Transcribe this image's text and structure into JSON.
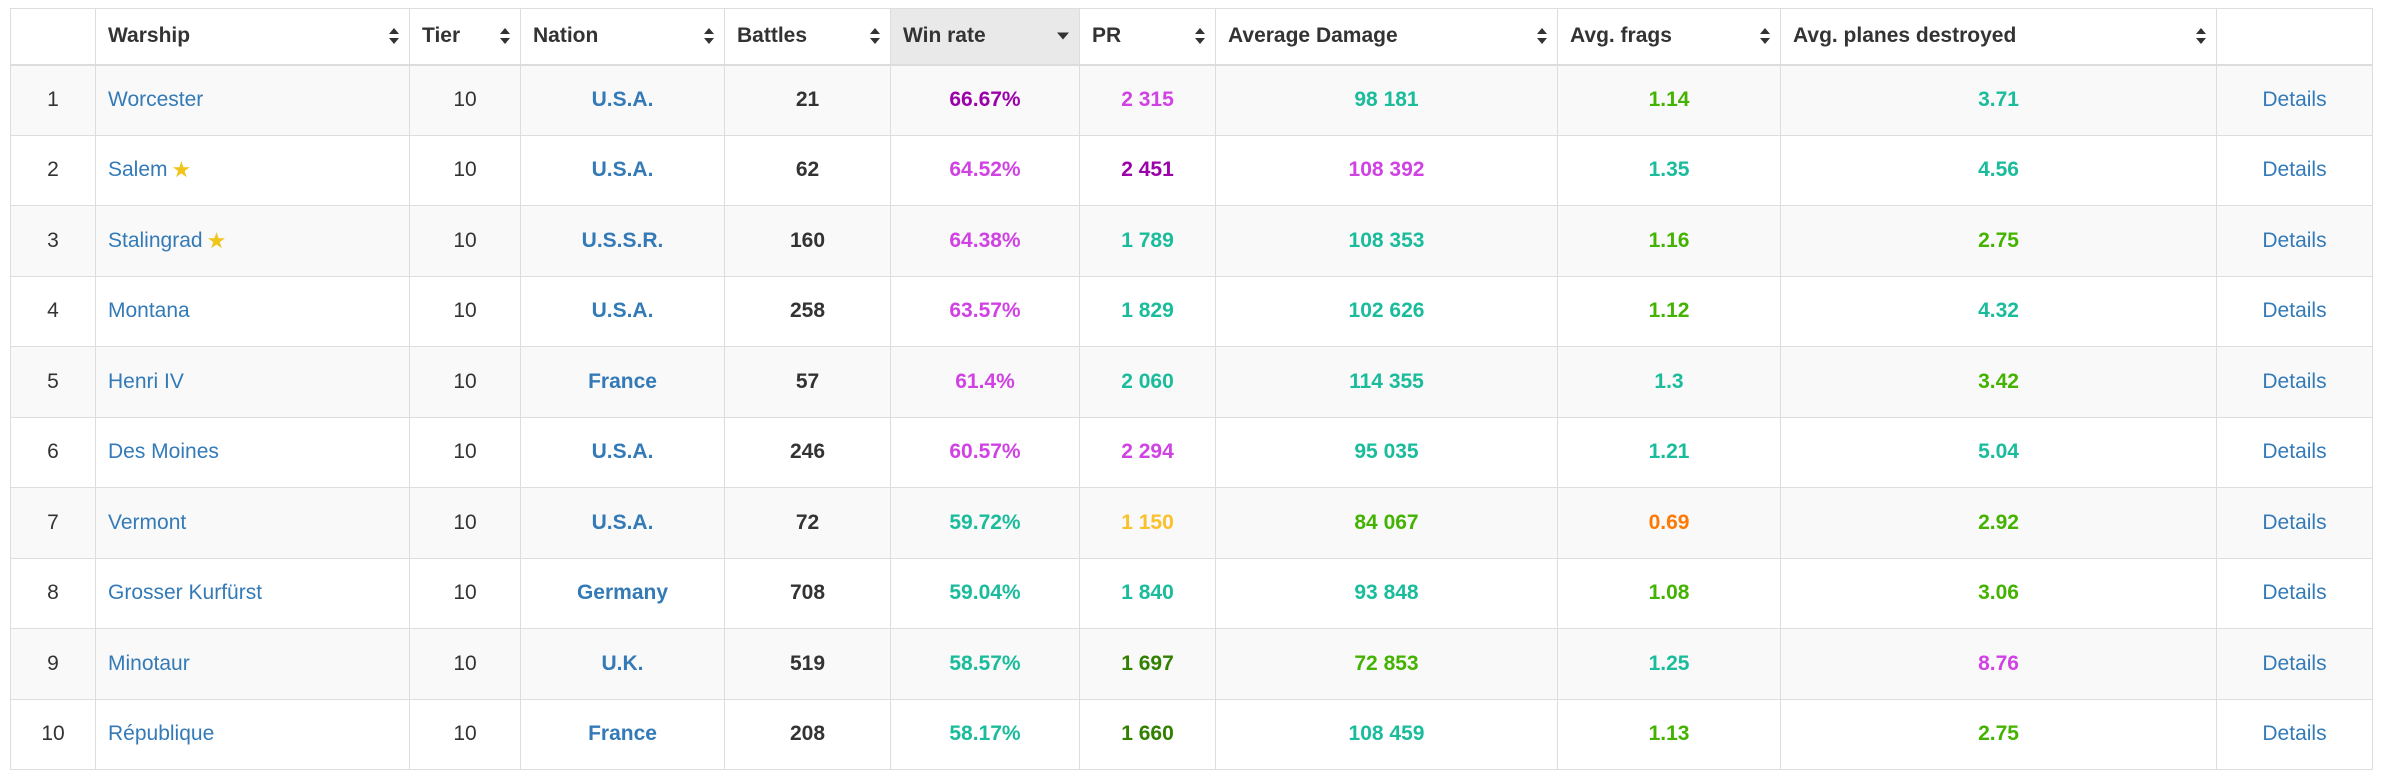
{
  "colors": {
    "link": "#337ab7",
    "purple": "#9b00aa",
    "magenta": "#d042e4",
    "teal": "#1abc9c",
    "green": "#44b300",
    "dark_green": "#318000",
    "yellow": "#fbc02d",
    "orange": "#fe7903",
    "star": "#f0c419"
  },
  "headers": [
    {
      "label": "",
      "sortable": false
    },
    {
      "label": "Warship",
      "sortable": true
    },
    {
      "label": "Tier",
      "sortable": true
    },
    {
      "label": "Nation",
      "sortable": true
    },
    {
      "label": "Battles",
      "sortable": true
    },
    {
      "label": "Win rate",
      "sortable": true,
      "sorted": "desc"
    },
    {
      "label": "PR",
      "sortable": true
    },
    {
      "label": "Average Damage",
      "sortable": true
    },
    {
      "label": "Avg. frags",
      "sortable": true
    },
    {
      "label": "Avg. planes destroyed",
      "sortable": true
    },
    {
      "label": "",
      "sortable": false
    }
  ],
  "rows": [
    {
      "num": "1",
      "ship": "Worcester",
      "star": false,
      "tier": "10",
      "nation": "U.S.A.",
      "battles": "21",
      "winrate": "66.67%",
      "winrate_color": "#9b00aa",
      "pr": "2 315",
      "pr_color": "#d042e4",
      "damage": "98 181",
      "damage_color": "#1abc9c",
      "frags": "1.14",
      "frags_color": "#44b300",
      "planes": "3.71",
      "planes_color": "#1abc9c",
      "details": "Details"
    },
    {
      "num": "2",
      "ship": "Salem",
      "star": true,
      "tier": "10",
      "nation": "U.S.A.",
      "battles": "62",
      "winrate": "64.52%",
      "winrate_color": "#d042e4",
      "pr": "2 451",
      "pr_color": "#9b00aa",
      "damage": "108 392",
      "damage_color": "#d042e4",
      "frags": "1.35",
      "frags_color": "#1abc9c",
      "planes": "4.56",
      "planes_color": "#1abc9c",
      "details": "Details"
    },
    {
      "num": "3",
      "ship": "Stalingrad",
      "star": true,
      "tier": "10",
      "nation": "U.S.S.R.",
      "battles": "160",
      "winrate": "64.38%",
      "winrate_color": "#d042e4",
      "pr": "1 789",
      "pr_color": "#1abc9c",
      "damage": "108 353",
      "damage_color": "#1abc9c",
      "frags": "1.16",
      "frags_color": "#44b300",
      "planes": "2.75",
      "planes_color": "#44b300",
      "details": "Details"
    },
    {
      "num": "4",
      "ship": "Montana",
      "star": false,
      "tier": "10",
      "nation": "U.S.A.",
      "battles": "258",
      "winrate": "63.57%",
      "winrate_color": "#d042e4",
      "pr": "1 829",
      "pr_color": "#1abc9c",
      "damage": "102 626",
      "damage_color": "#1abc9c",
      "frags": "1.12",
      "frags_color": "#44b300",
      "planes": "4.32",
      "planes_color": "#1abc9c",
      "details": "Details"
    },
    {
      "num": "5",
      "ship": "Henri IV",
      "star": false,
      "tier": "10",
      "nation": "France",
      "battles": "57",
      "winrate": "61.4%",
      "winrate_color": "#d042e4",
      "pr": "2 060",
      "pr_color": "#1abc9c",
      "damage": "114 355",
      "damage_color": "#1abc9c",
      "frags": "1.3",
      "frags_color": "#1abc9c",
      "planes": "3.42",
      "planes_color": "#44b300",
      "details": "Details"
    },
    {
      "num": "6",
      "ship": "Des Moines",
      "star": false,
      "tier": "10",
      "nation": "U.S.A.",
      "battles": "246",
      "winrate": "60.57%",
      "winrate_color": "#d042e4",
      "pr": "2 294",
      "pr_color": "#d042e4",
      "damage": "95 035",
      "damage_color": "#1abc9c",
      "frags": "1.21",
      "frags_color": "#1abc9c",
      "planes": "5.04",
      "planes_color": "#1abc9c",
      "details": "Details"
    },
    {
      "num": "7",
      "ship": "Vermont",
      "star": false,
      "tier": "10",
      "nation": "U.S.A.",
      "battles": "72",
      "winrate": "59.72%",
      "winrate_color": "#1abc9c",
      "pr": "1 150",
      "pr_color": "#fbc02d",
      "damage": "84 067",
      "damage_color": "#44b300",
      "frags": "0.69",
      "frags_color": "#fe7903",
      "planes": "2.92",
      "planes_color": "#44b300",
      "details": "Details"
    },
    {
      "num": "8",
      "ship": "Grosser Kurfürst",
      "star": false,
      "tier": "10",
      "nation": "Germany",
      "battles": "708",
      "winrate": "59.04%",
      "winrate_color": "#1abc9c",
      "pr": "1 840",
      "pr_color": "#1abc9c",
      "damage": "93 848",
      "damage_color": "#1abc9c",
      "frags": "1.08",
      "frags_color": "#44b300",
      "planes": "3.06",
      "planes_color": "#44b300",
      "details": "Details"
    },
    {
      "num": "9",
      "ship": "Minotaur",
      "star": false,
      "tier": "10",
      "nation": "U.K.",
      "battles": "519",
      "winrate": "58.57%",
      "winrate_color": "#1abc9c",
      "pr": "1 697",
      "pr_color": "#318000",
      "damage": "72 853",
      "damage_color": "#44b300",
      "frags": "1.25",
      "frags_color": "#1abc9c",
      "planes": "8.76",
      "planes_color": "#d042e4",
      "details": "Details"
    },
    {
      "num": "10",
      "ship": "République",
      "star": false,
      "tier": "10",
      "nation": "France",
      "battles": "208",
      "winrate": "58.17%",
      "winrate_color": "#1abc9c",
      "pr": "1 660",
      "pr_color": "#318000",
      "damage": "108 459",
      "damage_color": "#1abc9c",
      "frags": "1.13",
      "frags_color": "#44b300",
      "planes": "2.75",
      "planes_color": "#44b300",
      "details": "Details"
    }
  ]
}
